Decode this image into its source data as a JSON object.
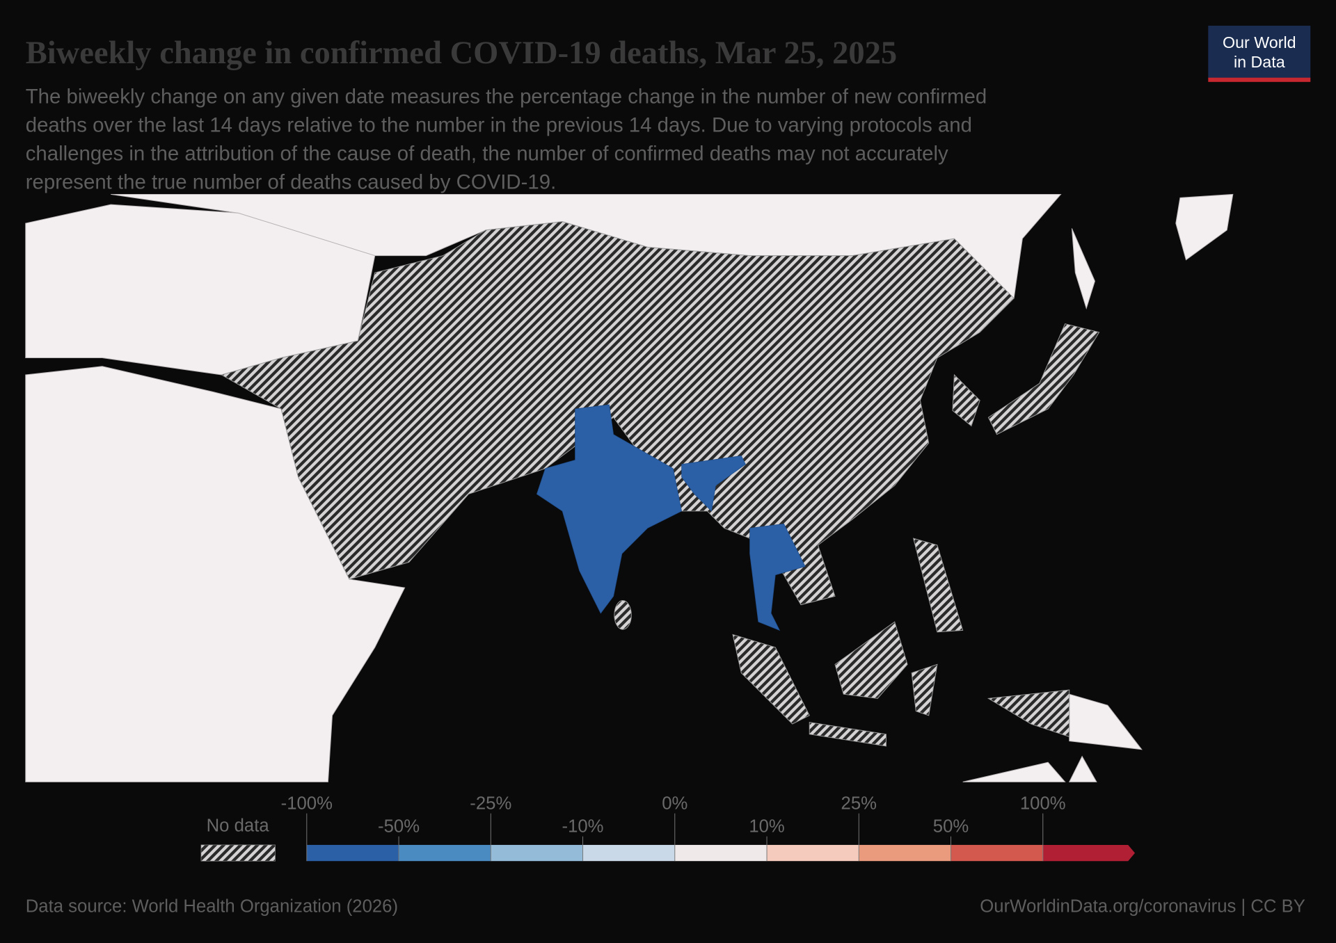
{
  "chart_data": {
    "type": "choropleth",
    "title": "Biweekly change in confirmed COVID-19 deaths, Mar 25, 2025",
    "subtitle": [
      "The biweekly change on any given date measures the percentage change in the number of new confirmed",
      "deaths over the last 14 days relative to the number in the previous 14 days. Due to varying protocols and",
      "challenges in the attribution of the cause of death, the number of confirmed deaths may not accurately",
      "represent the true number of deaths caused by COVID-19."
    ],
    "legend": {
      "no_data_label": "No data",
      "ticks": [
        {
          "value": -100,
          "label": "-100%"
        },
        {
          "value": -50,
          "label": "-50%"
        },
        {
          "value": -25,
          "label": "-25%"
        },
        {
          "value": -10,
          "label": "-10%"
        },
        {
          "value": 0,
          "label": "0%"
        },
        {
          "value": 10,
          "label": "10%"
        },
        {
          "value": 25,
          "label": "25%"
        },
        {
          "value": 50,
          "label": "50%"
        },
        {
          "value": 100,
          "label": "100%"
        }
      ],
      "colors": [
        "#2b60a7",
        "#4a8bc2",
        "#94bbd8",
        "#c9d9e8",
        "#efe9ea",
        "#f4cbbd",
        "#ea9b7d",
        "#d3594f",
        "#b01f34"
      ]
    },
    "source": "Data source: World Health Organization (2026)",
    "url": "OurWorldinData.org/coronavirus | CC BY",
    "logo": [
      "Our World",
      "in Data"
    ]
  }
}
